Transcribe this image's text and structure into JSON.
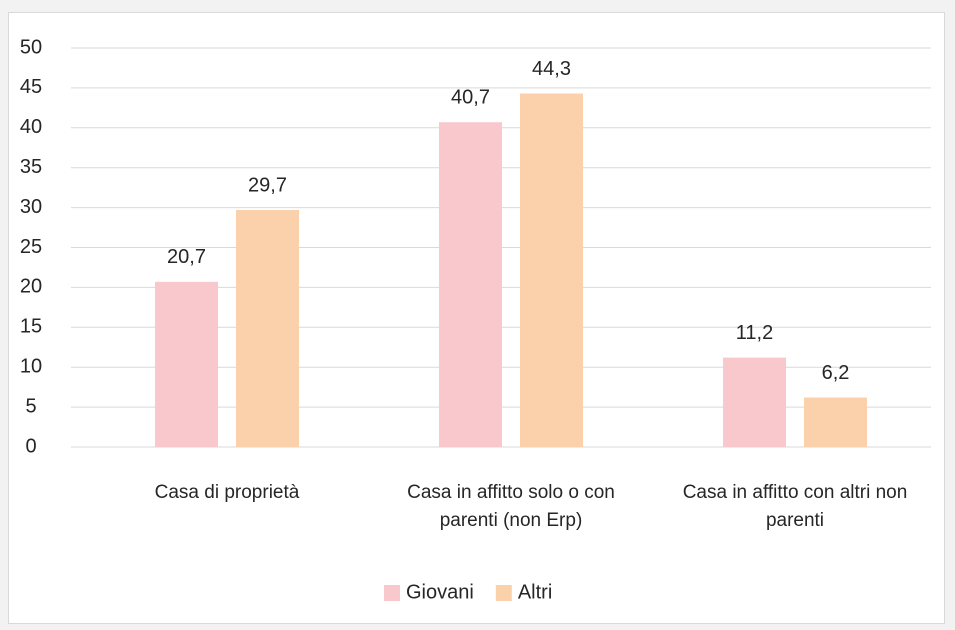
{
  "chart_data": {
    "type": "bar",
    "categories": [
      "Casa di proprietà",
      "Casa in affitto solo o con parenti (non Erp)",
      "Casa in affitto con altri non parenti"
    ],
    "series": [
      {
        "name": "Giovani",
        "color": "#f9c8cc",
        "values": [
          20.7,
          40.7,
          11.2
        ],
        "value_labels": [
          "20,7",
          "40,7",
          "11,2"
        ]
      },
      {
        "name": "Altri",
        "color": "#fbd1ab",
        "values": [
          29.7,
          44.3,
          6.2
        ],
        "value_labels": [
          "29,7",
          "44,3",
          "6,2"
        ]
      }
    ],
    "ylim": [
      0,
      50
    ],
    "yticks": [
      0,
      5,
      10,
      15,
      20,
      25,
      30,
      35,
      40,
      45,
      50
    ],
    "grid": true,
    "legend": "bottom"
  }
}
